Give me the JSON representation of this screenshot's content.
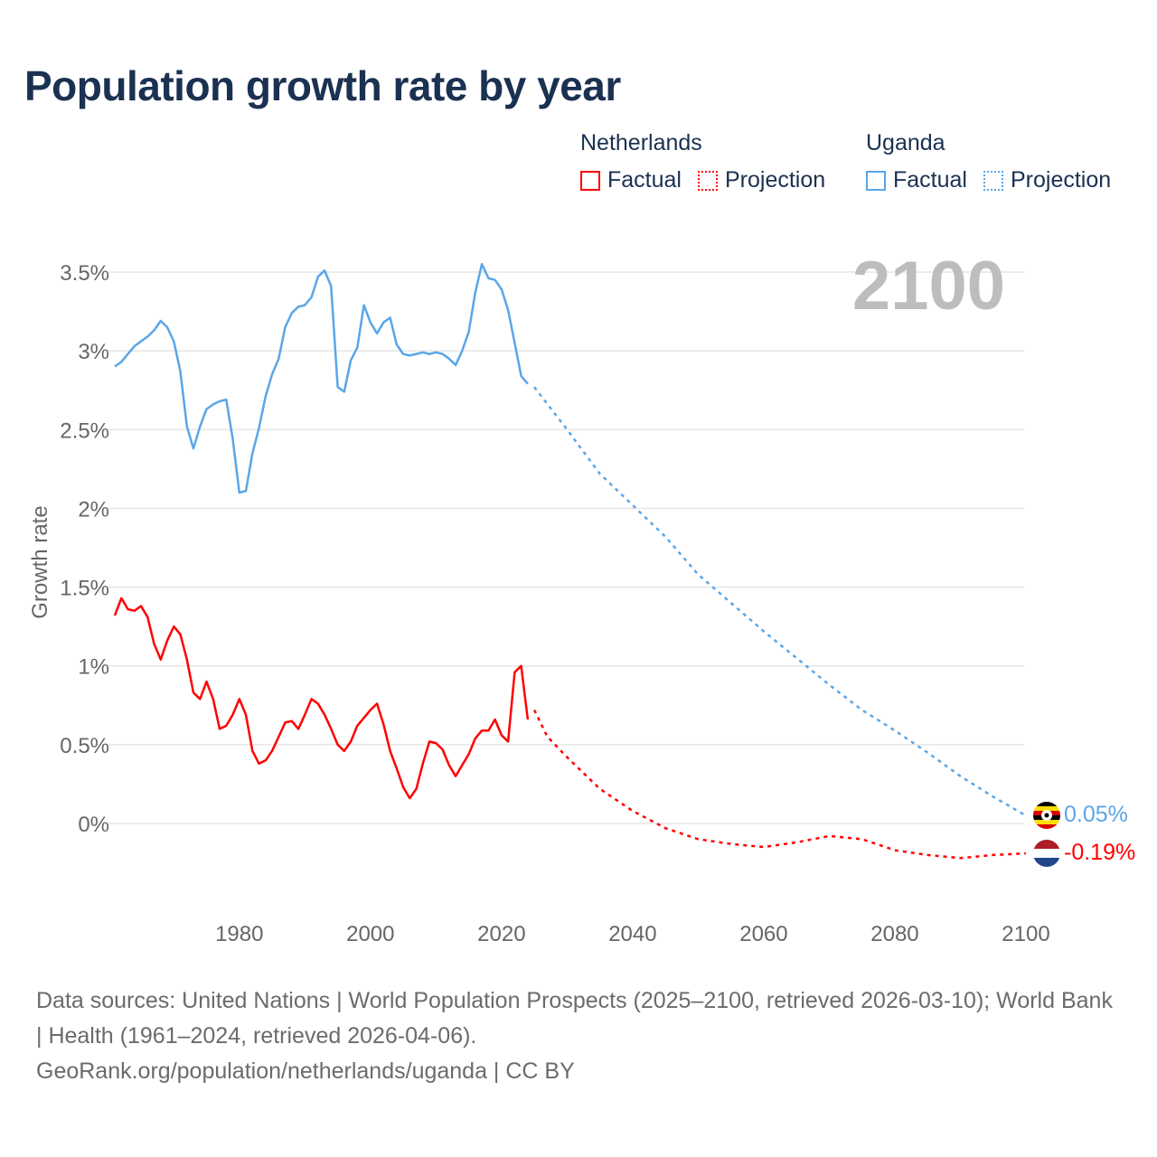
{
  "colors": {
    "netherlands": "#ff0000",
    "uganda": "#5aa6e8",
    "title": "#1b3151",
    "year_label": "#bdbdbd"
  },
  "legend": {
    "netherlands": {
      "name": "Netherlands",
      "factual": "Factual",
      "projection": "Projection"
    },
    "uganda": {
      "name": "Uganda",
      "factual": "Factual",
      "projection": "Projection"
    }
  },
  "footer": {
    "sources": "Data sources: United Nations | World Population Prospects (2025–2100, retrieved 2026-03-10); World Bank | Health (1961–2024, retrieved 2026-04-06).",
    "credit": "GeoRank.org/population/netherlands/uganda | CC BY"
  },
  "chart_data": {
    "type": "line",
    "title": "Population growth rate by year",
    "ylabel": "Growth rate",
    "xlabel": "",
    "year_display": "2100",
    "xlim": [
      1961,
      2100
    ],
    "ylim": [
      -0.5,
      3.7
    ],
    "x_ticks": [
      1980,
      2000,
      2020,
      2040,
      2060,
      2080,
      2100
    ],
    "y_ticks": [
      0,
      0.5,
      1,
      1.5,
      2,
      2.5,
      3,
      3.5
    ],
    "y_tick_labels": [
      "0%",
      "0.5%",
      "1%",
      "1.5%",
      "2%",
      "2.5%",
      "3%",
      "3.5%"
    ],
    "grid": true,
    "legend_position": "top-right",
    "series": [
      {
        "name": "Uganda",
        "end_label": "0.05%",
        "factual": {
          "start_year": 1961,
          "values": [
            2.9,
            2.93,
            2.98,
            3.03,
            3.06,
            3.09,
            3.13,
            3.19,
            3.15,
            3.06,
            2.87,
            2.52,
            2.38,
            2.52,
            2.63,
            2.66,
            2.68,
            2.69,
            2.44,
            2.1,
            2.11,
            2.35,
            2.51,
            2.71,
            2.85,
            2.95,
            3.15,
            3.24,
            3.28,
            3.29,
            3.34,
            3.47,
            3.51,
            3.41,
            2.77,
            2.74,
            2.94,
            3.02,
            3.29,
            3.18,
            3.11,
            3.18,
            3.21,
            3.04,
            2.98,
            2.97,
            2.98,
            2.99,
            2.98,
            2.99,
            2.98,
            2.95,
            2.91,
            3.0,
            3.12,
            3.37,
            3.55,
            3.46,
            3.45,
            3.39,
            3.26,
            3.05,
            2.84,
            2.79
          ]
        },
        "projection": {
          "years": [
            2025,
            2030,
            2035,
            2040,
            2045,
            2050,
            2055,
            2060,
            2065,
            2070,
            2075,
            2080,
            2085,
            2090,
            2095,
            2100
          ],
          "values": [
            2.77,
            2.5,
            2.22,
            2.02,
            1.82,
            1.58,
            1.4,
            1.22,
            1.05,
            0.88,
            0.72,
            0.59,
            0.45,
            0.3,
            0.17,
            0.05
          ]
        }
      },
      {
        "name": "Netherlands",
        "end_label": "-0.19%",
        "factual": {
          "start_year": 1961,
          "values": [
            1.32,
            1.43,
            1.36,
            1.35,
            1.38,
            1.31,
            1.14,
            1.04,
            1.16,
            1.25,
            1.2,
            1.04,
            0.83,
            0.79,
            0.9,
            0.79,
            0.6,
            0.62,
            0.69,
            0.79,
            0.69,
            0.46,
            0.38,
            0.4,
            0.46,
            0.55,
            0.64,
            0.65,
            0.6,
            0.69,
            0.79,
            0.76,
            0.69,
            0.6,
            0.5,
            0.46,
            0.52,
            0.62,
            0.67,
            0.72,
            0.76,
            0.63,
            0.46,
            0.35,
            0.23,
            0.16,
            0.22,
            0.38,
            0.52,
            0.51,
            0.47,
            0.37,
            0.3,
            0.37,
            0.44,
            0.54,
            0.59,
            0.59,
            0.66,
            0.56,
            0.52,
            0.96,
            1.0,
            0.66
          ]
        },
        "projection": {
          "years": [
            2025,
            2027,
            2030,
            2035,
            2040,
            2045,
            2050,
            2055,
            2060,
            2065,
            2070,
            2075,
            2080,
            2085,
            2090,
            2095,
            2100
          ],
          "values": [
            0.72,
            0.55,
            0.42,
            0.22,
            0.08,
            -0.03,
            -0.1,
            -0.13,
            -0.15,
            -0.12,
            -0.08,
            -0.1,
            -0.17,
            -0.2,
            -0.22,
            -0.2,
            -0.19
          ]
        }
      }
    ]
  }
}
